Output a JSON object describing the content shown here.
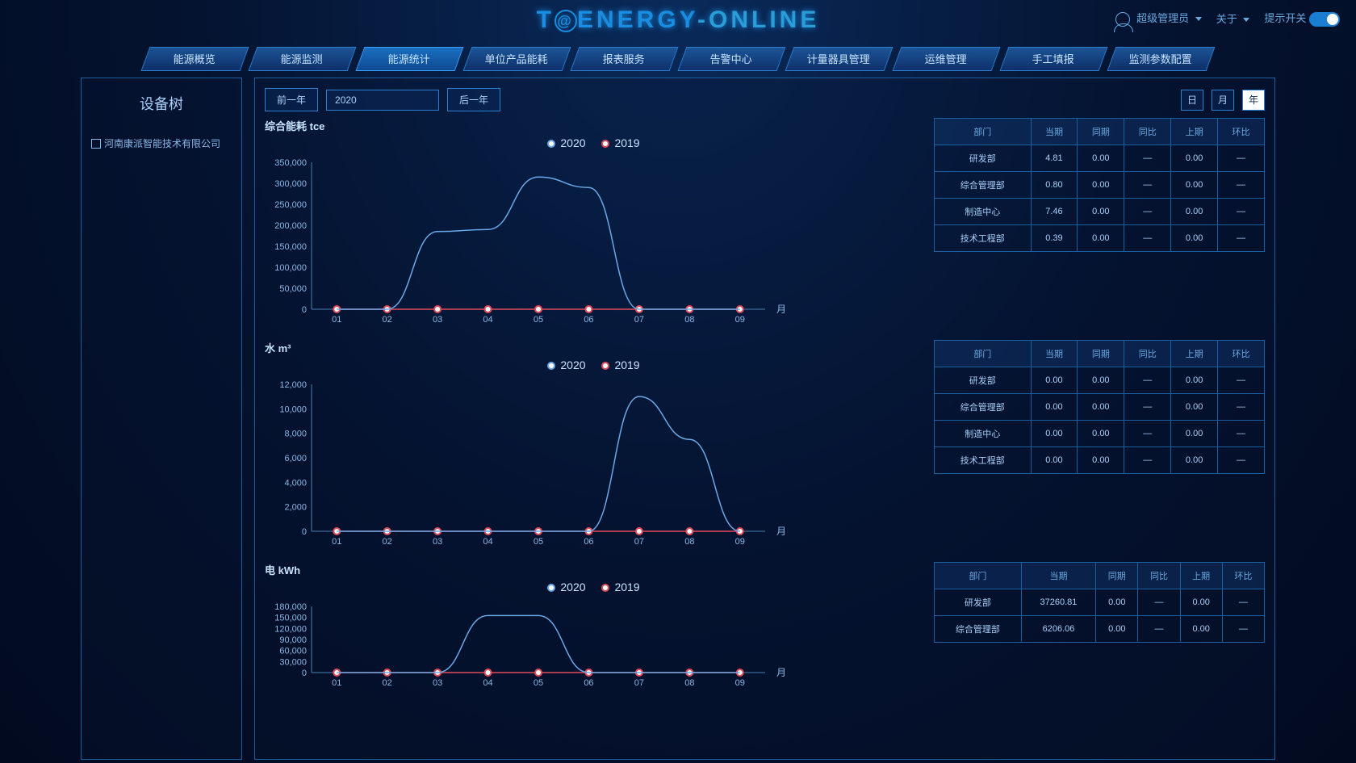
{
  "header": {
    "logo_part1": "T",
    "logo_part2": "ENERGY",
    "logo_part3": "-ONLINE",
    "user_label": "超级管理员",
    "about_label": "关于",
    "toggle_label": "提示开关"
  },
  "nav": {
    "items": [
      "能源概览",
      "能源监测",
      "能源统计",
      "单位产品能耗",
      "报表服务",
      "告警中心",
      "计量器具管理",
      "运维管理",
      "手工填报",
      "监测参数配置"
    ],
    "active_index": 2
  },
  "sidebar": {
    "title": "设备树",
    "tree_item": "河南康派智能技术有限公司"
  },
  "toolbar": {
    "prev_year": "前一年",
    "year_value": "2020",
    "next_year": "后一年",
    "periods": [
      "日",
      "月",
      "年"
    ],
    "active_period_index": 2
  },
  "legend": {
    "series1": "2020",
    "series2": "2019"
  },
  "colors": {
    "series1": "#6aa8e8",
    "series2": "#e04a5a",
    "axis": "#4a7fb0",
    "text": "#8ab8e8",
    "border": "#1a5fa0"
  },
  "charts": [
    {
      "title": "综合能耗 tce",
      "x_label": "月",
      "x_categories": [
        "01",
        "02",
        "03",
        "04",
        "05",
        "06",
        "07",
        "08",
        "09"
      ],
      "y_max": 350000,
      "y_step": 50000,
      "series1": [
        0,
        0,
        185000,
        190000,
        315000,
        290000,
        0,
        0,
        0
      ],
      "series2": [
        0,
        0,
        0,
        0,
        0,
        0,
        0,
        0,
        0
      ]
    },
    {
      "title": "水 m³",
      "x_label": "月",
      "x_categories": [
        "01",
        "02",
        "03",
        "04",
        "05",
        "06",
        "07",
        "08",
        "09"
      ],
      "y_max": 12000,
      "y_step": 2000,
      "series1": [
        0,
        0,
        0,
        0,
        0,
        0,
        11000,
        7500,
        0
      ],
      "series2": [
        0,
        0,
        0,
        0,
        0,
        0,
        0,
        0,
        0
      ]
    },
    {
      "title": "电 kWh",
      "x_label": "月",
      "x_categories": [
        "01",
        "02",
        "03",
        "04",
        "05",
        "06",
        "07",
        "08",
        "09"
      ],
      "y_max": 180000,
      "y_step": 30000,
      "series1": [
        0,
        0,
        0,
        155000,
        155000,
        0,
        0,
        0,
        0
      ],
      "series2": [
        0,
        0,
        0,
        0,
        0,
        0,
        0,
        0,
        0
      ]
    }
  ],
  "table_headers": [
    "部门",
    "当期",
    "同期",
    "同比",
    "上期",
    "环比"
  ],
  "tables": [
    [
      [
        "研发部",
        "4.81",
        "0.00",
        "—",
        "0.00",
        "—"
      ],
      [
        "综合管理部",
        "0.80",
        "0.00",
        "—",
        "0.00",
        "—"
      ],
      [
        "制造中心",
        "7.46",
        "0.00",
        "—",
        "0.00",
        "—"
      ],
      [
        "技术工程部",
        "0.39",
        "0.00",
        "—",
        "0.00",
        "—"
      ]
    ],
    [
      [
        "研发部",
        "0.00",
        "0.00",
        "—",
        "0.00",
        "—"
      ],
      [
        "综合管理部",
        "0.00",
        "0.00",
        "—",
        "0.00",
        "—"
      ],
      [
        "制造中心",
        "0.00",
        "0.00",
        "—",
        "0.00",
        "—"
      ],
      [
        "技术工程部",
        "0.00",
        "0.00",
        "—",
        "0.00",
        "—"
      ]
    ],
    [
      [
        "研发部",
        "37260.81",
        "0.00",
        "—",
        "0.00",
        "—"
      ],
      [
        "综合管理部",
        "6206.06",
        "0.00",
        "—",
        "0.00",
        "—"
      ]
    ]
  ]
}
